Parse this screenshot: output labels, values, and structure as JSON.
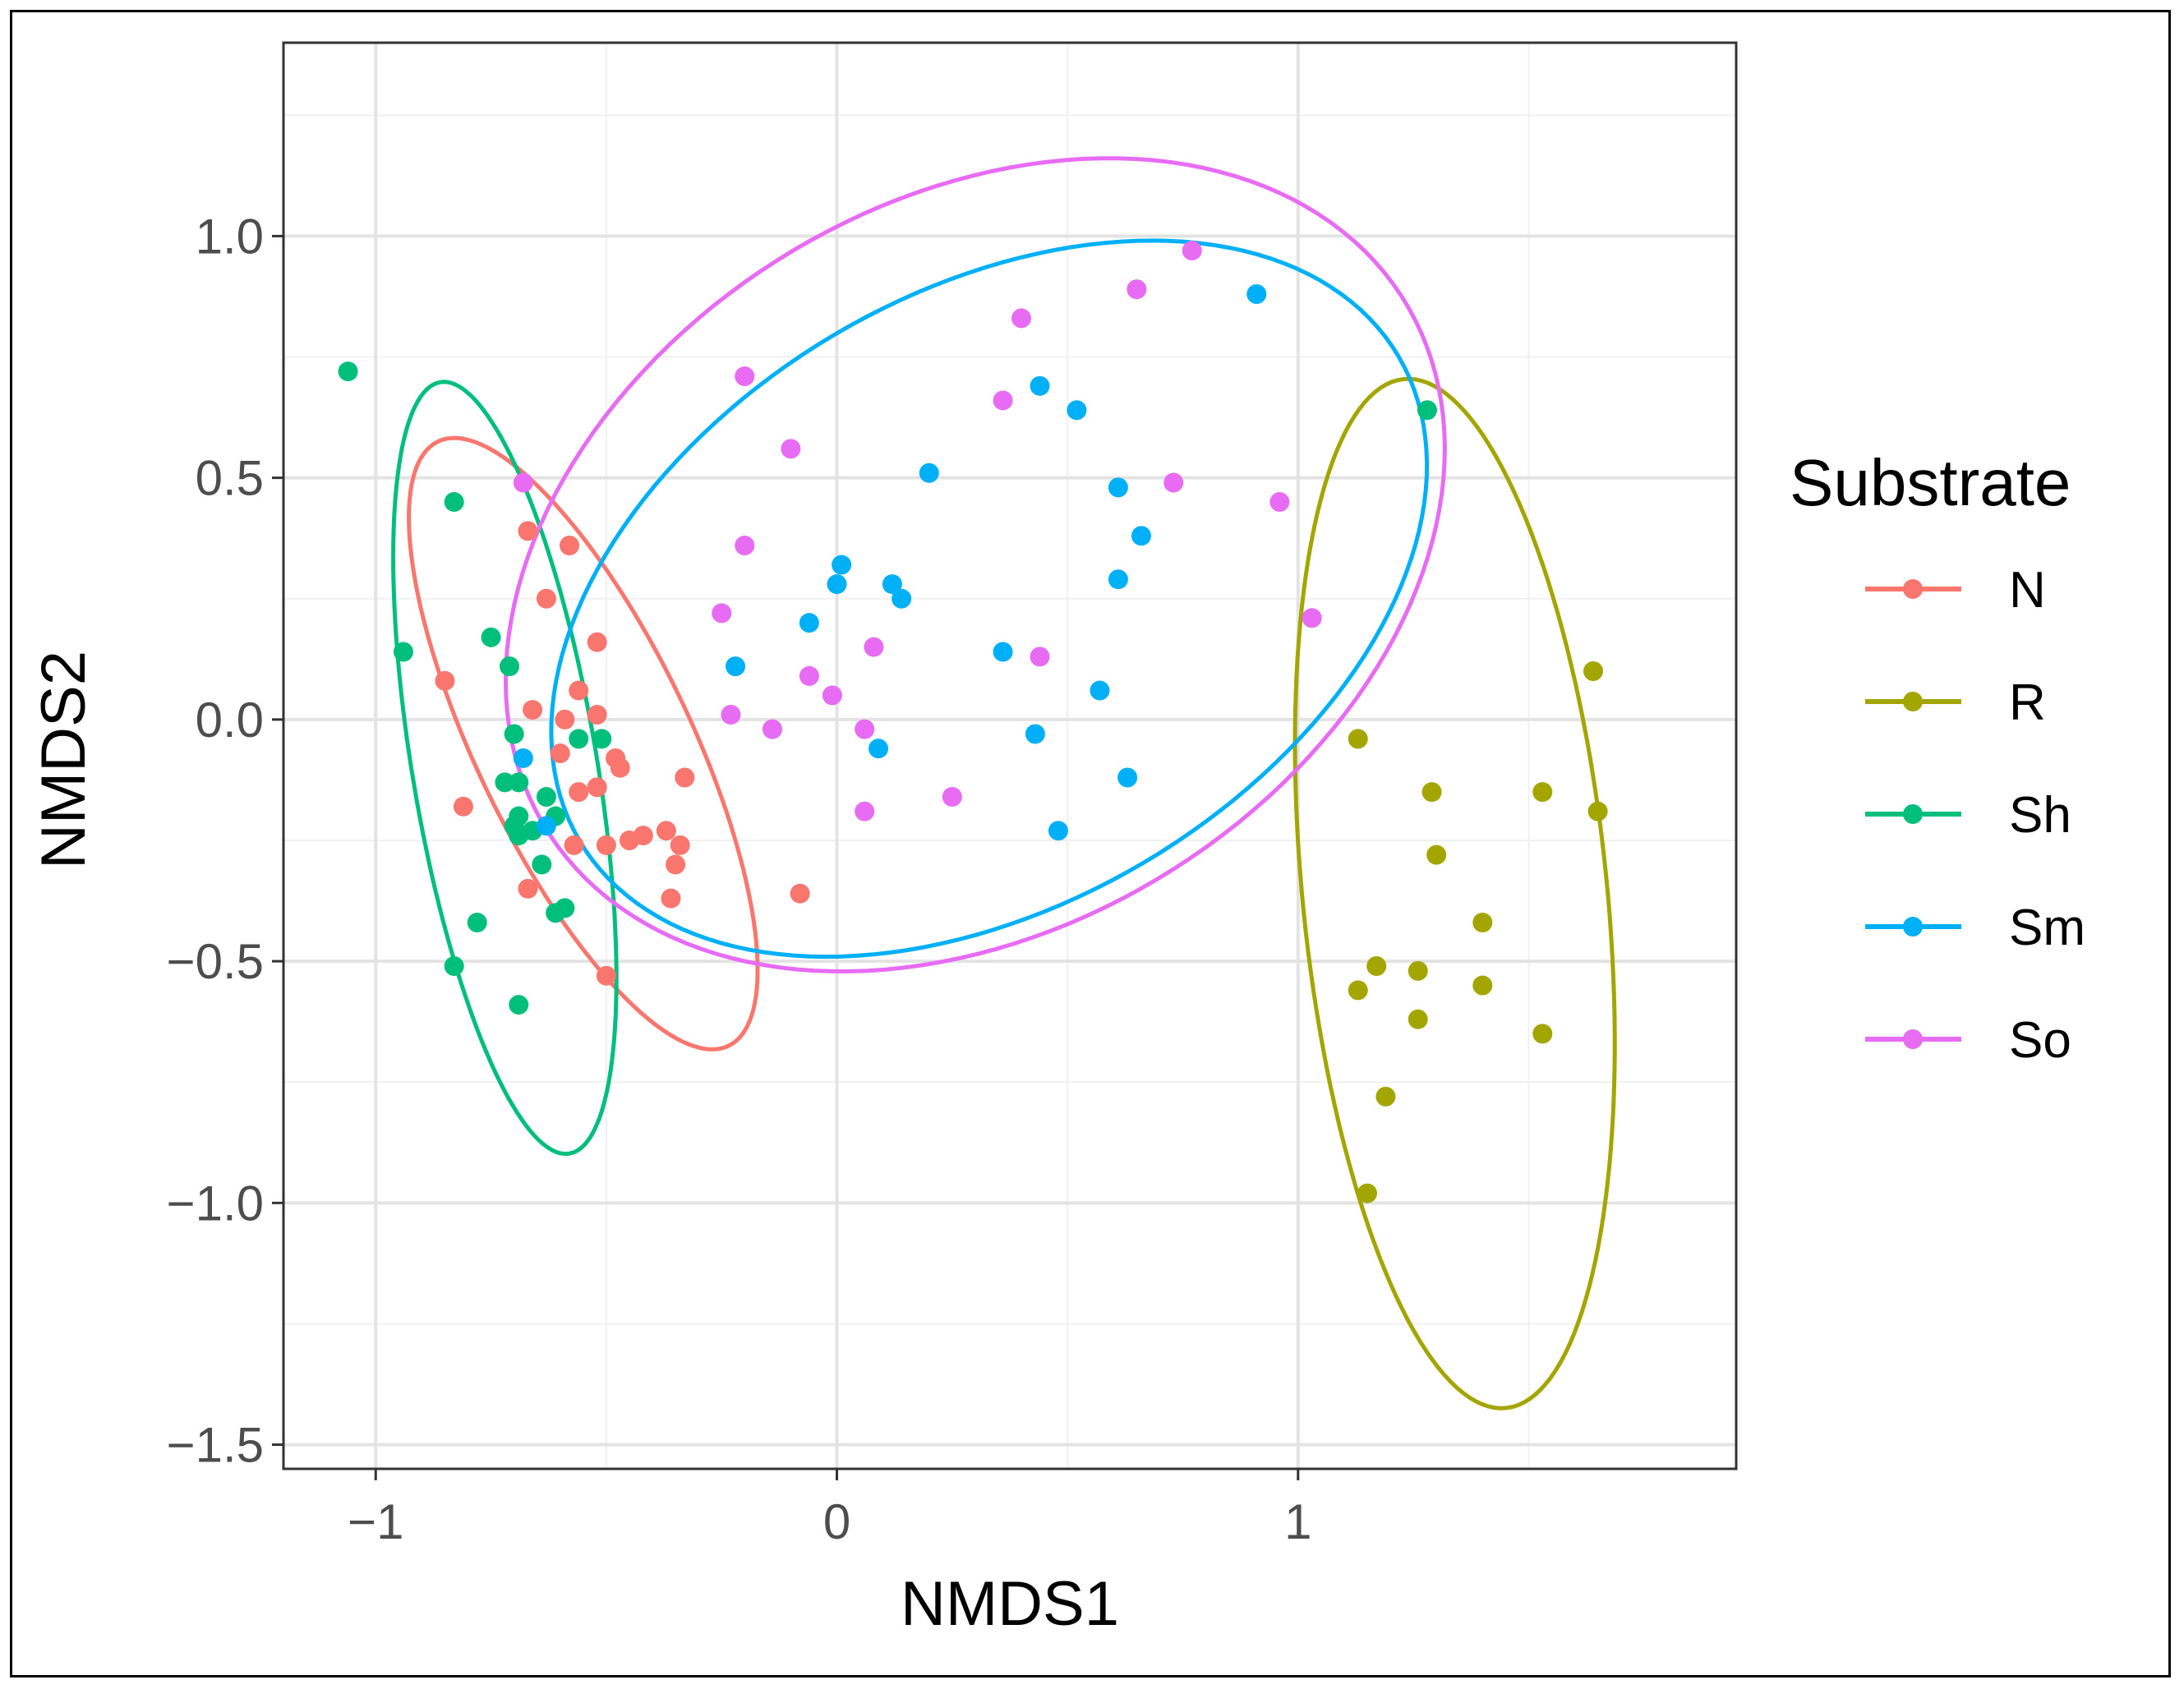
{
  "chart_data": {
    "type": "scatter",
    "title": "",
    "xlabel": "NMDS1",
    "ylabel": "NMDS2",
    "xlim": [
      -1.2,
      1.95
    ],
    "ylim": [
      -1.55,
      1.4
    ],
    "xticks": [
      -1,
      0,
      1
    ],
    "xtick_labels": [
      "−1",
      "0",
      "1"
    ],
    "yticks": [
      1.0,
      0.5,
      0.0,
      -0.5,
      -1.0,
      -1.5
    ],
    "ytick_labels": [
      "1.0",
      "0.5",
      "0.0",
      "−0.5",
      "−1.0",
      "−1.5"
    ],
    "grid": true,
    "legend": {
      "title": "Substrate",
      "position": "right"
    },
    "series": [
      {
        "name": "N",
        "color": "#F8766D",
        "ellipse": {
          "cx": -0.55,
          "cy": -0.05,
          "rx": 0.7,
          "ry": 0.23,
          "angle": -63
        },
        "points": [
          [
            -0.85,
            0.08
          ],
          [
            -0.67,
            0.39
          ],
          [
            -0.58,
            0.36
          ],
          [
            -0.63,
            0.25
          ],
          [
            -0.52,
            0.16
          ],
          [
            -0.56,
            0.06
          ],
          [
            -0.59,
            0.0
          ],
          [
            -0.66,
            0.02
          ],
          [
            -0.52,
            0.01
          ],
          [
            -0.6,
            -0.07
          ],
          [
            -0.48,
            -0.08
          ],
          [
            -0.47,
            -0.1
          ],
          [
            -0.52,
            -0.14
          ],
          [
            -0.56,
            -0.15
          ],
          [
            -0.33,
            -0.12
          ],
          [
            -0.81,
            -0.18
          ],
          [
            -0.57,
            -0.26
          ],
          [
            -0.5,
            -0.26
          ],
          [
            -0.45,
            -0.25
          ],
          [
            -0.42,
            -0.24
          ],
          [
            -0.37,
            -0.23
          ],
          [
            -0.34,
            -0.26
          ],
          [
            -0.35,
            -0.3
          ],
          [
            -0.36,
            -0.37
          ],
          [
            -0.67,
            -0.35
          ],
          [
            -0.08,
            -0.36
          ],
          [
            -0.5,
            -0.53
          ]
        ]
      },
      {
        "name": "R",
        "color": "#A3A500",
        "ellipse": {
          "cx": 1.34,
          "cy": -0.36,
          "rx": 1.07,
          "ry": 0.33,
          "angle": -84
        },
        "points": [
          [
            1.64,
            0.1
          ],
          [
            1.13,
            -0.04
          ],
          [
            1.29,
            -0.15
          ],
          [
            1.53,
            -0.15
          ],
          [
            1.65,
            -0.19
          ],
          [
            1.3,
            -0.28
          ],
          [
            1.4,
            -0.42
          ],
          [
            1.17,
            -0.51
          ],
          [
            1.26,
            -0.52
          ],
          [
            1.4,
            -0.55
          ],
          [
            1.13,
            -0.56
          ],
          [
            1.26,
            -0.62
          ],
          [
            1.53,
            -0.65
          ],
          [
            1.19,
            -0.78
          ],
          [
            1.15,
            -0.98
          ]
        ]
      },
      {
        "name": "Sh",
        "color": "#00BF7D",
        "ellipse": {
          "cx": -0.72,
          "cy": -0.1,
          "rx": 0.81,
          "ry": 0.2,
          "angle": -80
        },
        "points": [
          [
            -1.06,
            0.72
          ],
          [
            -0.83,
            0.45
          ],
          [
            -0.94,
            0.14
          ],
          [
            -0.75,
            0.17
          ],
          [
            -0.71,
            0.11
          ],
          [
            -0.7,
            -0.03
          ],
          [
            -0.56,
            -0.04
          ],
          [
            -0.51,
            -0.04
          ],
          [
            -0.72,
            -0.13
          ],
          [
            -0.69,
            -0.13
          ],
          [
            -0.63,
            -0.16
          ],
          [
            -0.69,
            -0.2
          ],
          [
            -0.61,
            -0.2
          ],
          [
            -0.7,
            -0.22
          ],
          [
            -0.66,
            -0.23
          ],
          [
            -0.69,
            -0.24
          ],
          [
            -0.64,
            -0.3
          ],
          [
            -0.59,
            -0.39
          ],
          [
            -0.61,
            -0.4
          ],
          [
            -0.78,
            -0.42
          ],
          [
            -0.83,
            -0.51
          ],
          [
            -0.69,
            -0.59
          ],
          [
            1.28,
            0.64
          ]
        ]
      },
      {
        "name": "Sm",
        "color": "#00B0F6",
        "ellipse": {
          "cx": 0.33,
          "cy": 0.25,
          "rx": 1.02,
          "ry": 0.64,
          "angle": 28
        },
        "points": [
          [
            0.91,
            0.88
          ],
          [
            0.44,
            0.69
          ],
          [
            0.52,
            0.64
          ],
          [
            0.2,
            0.51
          ],
          [
            0.61,
            0.48
          ],
          [
            0.66,
            0.38
          ],
          [
            0.01,
            0.32
          ],
          [
            0.0,
            0.28
          ],
          [
            0.12,
            0.28
          ],
          [
            0.14,
            0.25
          ],
          [
            0.61,
            0.29
          ],
          [
            -0.06,
            0.2
          ],
          [
            0.36,
            0.14
          ],
          [
            -0.22,
            0.11
          ],
          [
            0.57,
            0.06
          ],
          [
            0.43,
            -0.03
          ],
          [
            0.09,
            -0.06
          ],
          [
            0.63,
            -0.12
          ],
          [
            0.48,
            -0.23
          ],
          [
            -0.68,
            -0.08
          ],
          [
            -0.63,
            -0.22
          ]
        ]
      },
      {
        "name": "So",
        "color": "#E76BF3",
        "ellipse": {
          "cx": 0.3,
          "cy": 0.32,
          "rx": 1.08,
          "ry": 0.76,
          "angle": 28
        },
        "points": [
          [
            0.77,
            0.97
          ],
          [
            0.65,
            0.89
          ],
          [
            0.4,
            0.83
          ],
          [
            -0.2,
            0.71
          ],
          [
            0.36,
            0.66
          ],
          [
            -0.1,
            0.56
          ],
          [
            0.73,
            0.49
          ],
          [
            0.96,
            0.45
          ],
          [
            -0.2,
            0.36
          ],
          [
            -0.25,
            0.22
          ],
          [
            1.03,
            0.21
          ],
          [
            0.08,
            0.15
          ],
          [
            0.44,
            0.13
          ],
          [
            -0.06,
            0.09
          ],
          [
            -0.01,
            0.05
          ],
          [
            -0.23,
            0.01
          ],
          [
            -0.14,
            -0.02
          ],
          [
            0.06,
            -0.02
          ],
          [
            0.25,
            -0.16
          ],
          [
            0.06,
            -0.19
          ],
          [
            -0.68,
            0.49
          ]
        ]
      }
    ]
  }
}
